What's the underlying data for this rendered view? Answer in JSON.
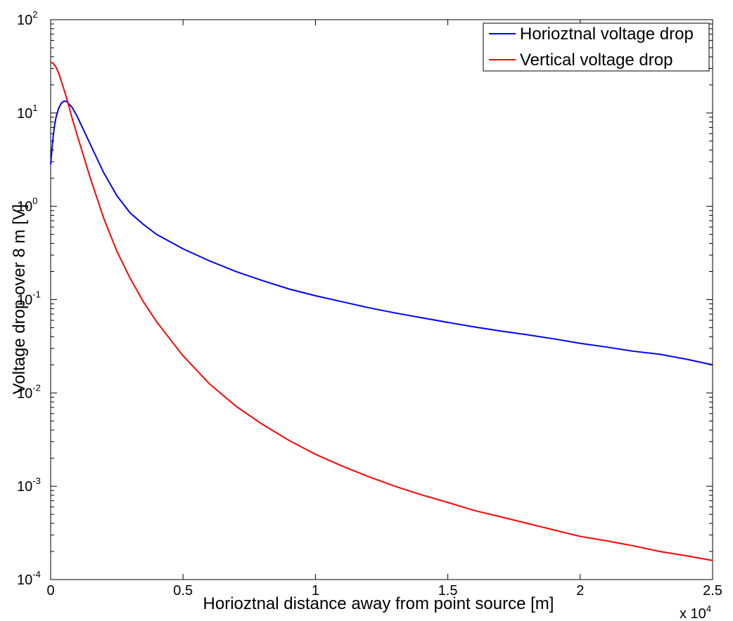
{
  "chart_data": {
    "type": "line",
    "xlabel": "Horioztnal distance away from point source [m]",
    "ylabel": "Voltage drop over 8 m [V]",
    "x_multiplier_label": {
      "base": "x 10",
      "exp": "4"
    },
    "xlim": [
      0,
      25000
    ],
    "ylim": [
      0.0001,
      100
    ],
    "yscale": "log",
    "grid": false,
    "legend_position": "top-right",
    "x_ticks": [
      {
        "value": 0,
        "label": "0"
      },
      {
        "value": 5000,
        "label": "0.5"
      },
      {
        "value": 10000,
        "label": "1"
      },
      {
        "value": 15000,
        "label": "1.5"
      },
      {
        "value": 20000,
        "label": "2"
      },
      {
        "value": 25000,
        "label": "2.5"
      }
    ],
    "y_ticks": [
      {
        "value": 100,
        "base": "10",
        "exp": "2"
      },
      {
        "value": 10,
        "base": "10",
        "exp": "1"
      },
      {
        "value": 1,
        "base": "10",
        "exp": "0"
      },
      {
        "value": 0.1,
        "base": "10",
        "exp": "-1"
      },
      {
        "value": 0.01,
        "base": "10",
        "exp": "-2"
      },
      {
        "value": 0.001,
        "base": "10",
        "exp": "-3"
      },
      {
        "value": 0.0001,
        "base": "10",
        "exp": "-4"
      }
    ],
    "series": [
      {
        "name": "Horioztnal voltage drop",
        "color": "#0000ff",
        "x": [
          0,
          25,
          50,
          100,
          150,
          200,
          300,
          400,
          500,
          600,
          800,
          1000,
          1200,
          1500,
          2000,
          2500,
          3000,
          3500,
          4000,
          5000,
          6000,
          7000,
          8000,
          9000,
          10000,
          11000,
          12000,
          13000,
          14000,
          15000,
          16000,
          17000,
          18000,
          19000,
          20000,
          21000,
          22000,
          23000,
          24000,
          25000
        ],
        "y": [
          2.8,
          3.4,
          4.1,
          5.8,
          7.4,
          8.9,
          11.2,
          12.7,
          13.4,
          13.3,
          11.6,
          9.2,
          7.0,
          4.6,
          2.3,
          1.3,
          0.85,
          0.64,
          0.5,
          0.35,
          0.26,
          0.2,
          0.16,
          0.13,
          0.11,
          0.095,
          0.082,
          0.072,
          0.064,
          0.057,
          0.051,
          0.046,
          0.042,
          0.038,
          0.034,
          0.031,
          0.028,
          0.026,
          0.023,
          0.02
        ]
      },
      {
        "name": "Vertical voltage drop",
        "color": "#ff0000",
        "x": [
          0,
          100,
          200,
          300,
          400,
          500,
          600,
          700,
          800,
          1000,
          1200,
          1500,
          2000,
          2500,
          3000,
          3500,
          4000,
          4500,
          5000,
          6000,
          7000,
          8000,
          9000,
          10000,
          11000,
          12000,
          13000,
          14000,
          15000,
          16000,
          17000,
          18000,
          19000,
          20000,
          21000,
          22000,
          23000,
          24000,
          25000
        ],
        "y": [
          35,
          34,
          31,
          27,
          22,
          18,
          14.5,
          11.5,
          9.0,
          5.8,
          3.8,
          2.0,
          0.75,
          0.33,
          0.17,
          0.095,
          0.058,
          0.038,
          0.025,
          0.0125,
          0.0072,
          0.0046,
          0.0031,
          0.0022,
          0.00165,
          0.00127,
          0.001,
          0.00081,
          0.00067,
          0.00055,
          0.00047,
          0.0004,
          0.00034,
          0.00029,
          0.00026,
          0.00023,
          0.0002,
          0.00018,
          0.00016
        ]
      }
    ]
  }
}
